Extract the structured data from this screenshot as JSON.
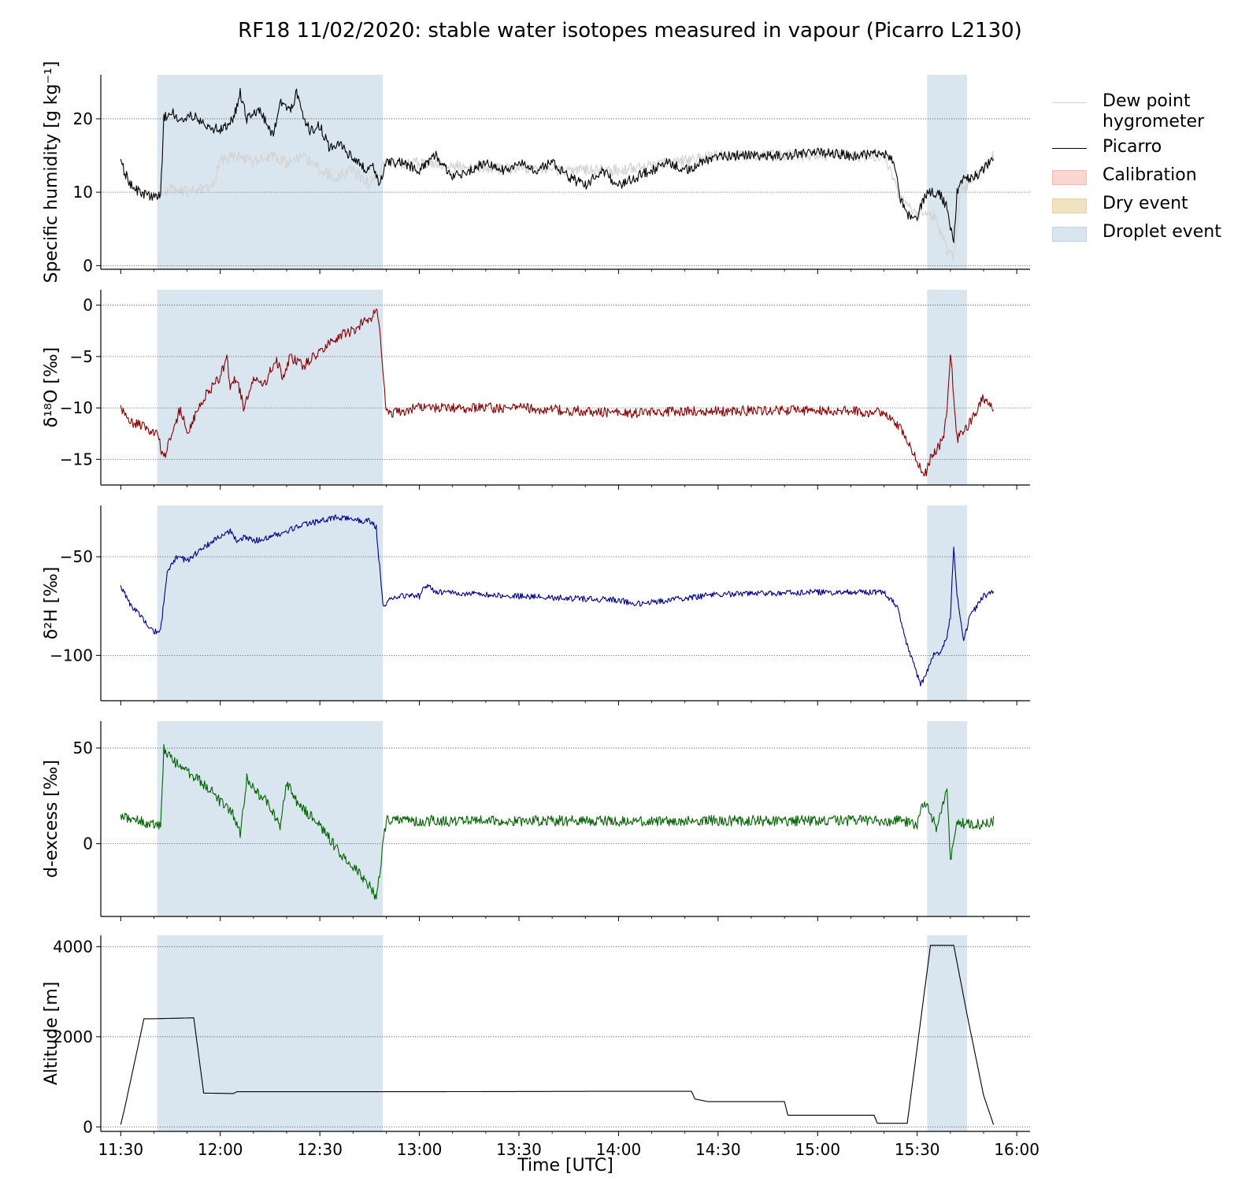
{
  "title": "RF18 11/02/2020: stable water isotopes measured in vapour (Picarro L2130)",
  "xlabel": "Time [UTC]",
  "legend": [
    {
      "label": "Dew point\nhygrometer",
      "kind": "line",
      "color": "#d3d3d3"
    },
    {
      "label": "Picarro",
      "kind": "line",
      "color": "#000000"
    },
    {
      "label": "Calibration",
      "kind": "patch",
      "color": "#fbd5d0"
    },
    {
      "label": "Dry event",
      "kind": "patch",
      "color": "#f2e3c0"
    },
    {
      "label": "Droplet event",
      "kind": "patch",
      "color": "#d9e5ef"
    }
  ],
  "chart_data": [
    {
      "type": "line",
      "ylabel": "Specific humidity [g kg⁻¹]",
      "ylim": [
        -0.5,
        26
      ],
      "yticks": [
        0,
        10,
        20
      ],
      "grid": "y-dotted",
      "shaded_events": [
        {
          "name": "Droplet event",
          "start": "11:41",
          "end": "12:49"
        },
        {
          "name": "Droplet event",
          "start": "15:33",
          "end": "15:45"
        }
      ],
      "series": [
        {
          "name": "Picarro",
          "color": "#000000",
          "x": [
            "11:30",
            "11:33",
            "11:36",
            "11:40",
            "11:42",
            "11:43",
            "11:45",
            "11:48",
            "11:52",
            "11:56",
            "12:00",
            "12:04",
            "12:06",
            "12:08",
            "12:12",
            "12:14",
            "12:16",
            "12:18",
            "12:21",
            "12:23",
            "12:25",
            "12:27",
            "12:30",
            "12:33",
            "12:36",
            "12:40",
            "12:44",
            "12:46",
            "12:48",
            "12:50",
            "12:55",
            "13:00",
            "13:05",
            "13:10",
            "13:15",
            "13:20",
            "13:25",
            "13:30",
            "13:35",
            "13:40",
            "13:45",
            "13:50",
            "13:55",
            "14:00",
            "14:05",
            "14:10",
            "14:15",
            "14:20",
            "14:25",
            "14:30",
            "14:40",
            "14:50",
            "15:00",
            "15:10",
            "15:20",
            "15:23",
            "15:25",
            "15:27",
            "15:30",
            "15:31",
            "15:33",
            "15:35",
            "15:37",
            "15:39",
            "15:40",
            "15:41",
            "15:42",
            "15:44",
            "15:47",
            "15:50",
            "15:53"
          ],
          "y": [
            14,
            11,
            9.8,
            9.2,
            9.5,
            20,
            21,
            20,
            20.5,
            19,
            18.5,
            20,
            23.5,
            20,
            21.5,
            19,
            17.5,
            22.5,
            21,
            23.5,
            20,
            18.5,
            19,
            16,
            16.5,
            14.5,
            13,
            14,
            11,
            14,
            14,
            13,
            15,
            12,
            13,
            14,
            13,
            14,
            13,
            14,
            12,
            11,
            13,
            11,
            12,
            13,
            14,
            13,
            14,
            15,
            15,
            15,
            15.5,
            15,
            15.2,
            14.5,
            9,
            7,
            6,
            8,
            10,
            10,
            9.5,
            8,
            5,
            3.5,
            10,
            12,
            12,
            13,
            15
          ]
        },
        {
          "name": "Dew point hygrometer",
          "color": "#d3d3d3",
          "x": [
            "11:41",
            "11:45",
            "11:50",
            "11:55",
            "11:58",
            "12:00",
            "12:05",
            "12:10",
            "12:15",
            "12:20",
            "12:25",
            "12:30",
            "12:35",
            "12:40",
            "12:45",
            "12:50",
            "13:00",
            "13:30",
            "14:00",
            "14:30",
            "15:00",
            "15:20",
            "15:25",
            "15:30",
            "15:35",
            "15:39",
            "15:41",
            "15:43",
            "15:47",
            "15:53"
          ],
          "y": [
            9.5,
            10.5,
            10,
            10.5,
            11,
            14.5,
            15,
            14,
            15,
            14,
            15,
            13,
            12,
            13,
            11,
            14,
            14,
            13,
            13,
            15,
            15,
            15,
            9,
            7,
            7,
            2,
            1,
            10,
            12,
            15
          ]
        }
      ]
    },
    {
      "type": "line",
      "ylabel": "δ¹⁸O [‰]",
      "ylim": [
        -17.5,
        1.5
      ],
      "yticks": [
        -15,
        -10,
        -5,
        0
      ],
      "grid": "y-dotted",
      "series": [
        {
          "name": "",
          "color": "#8b0000",
          "x": [
            "11:30",
            "11:34",
            "11:38",
            "11:41",
            "11:43",
            "11:45",
            "11:48",
            "11:50",
            "11:52",
            "11:55",
            "12:00",
            "12:02",
            "12:03",
            "12:05",
            "12:07",
            "12:10",
            "12:13",
            "12:15",
            "12:17",
            "12:19",
            "12:21",
            "12:23",
            "12:25",
            "12:28",
            "12:32",
            "12:36",
            "12:40",
            "12:42",
            "12:44",
            "12:46",
            "12:47",
            "12:48",
            "12:50",
            "13:00",
            "13:30",
            "14:00",
            "14:30",
            "15:00",
            "15:20",
            "15:25",
            "15:29",
            "15:31",
            "15:32",
            "15:34",
            "15:36",
            "15:38",
            "15:39",
            "15:40",
            "15:42",
            "15:45",
            "15:50",
            "15:53"
          ],
          "y": [
            -10,
            -11.5,
            -12,
            -12.5,
            -15,
            -13,
            -10,
            -12.5,
            -11,
            -9,
            -7,
            -5,
            -8,
            -7,
            -10,
            -7,
            -8,
            -6.5,
            -5.5,
            -7,
            -5,
            -5.5,
            -6,
            -5,
            -4,
            -3,
            -2.5,
            -2,
            -1.5,
            -1,
            0,
            -2,
            -10.5,
            -10,
            -10,
            -10.5,
            -10.3,
            -10.2,
            -10.5,
            -12,
            -14.5,
            -16,
            -16.8,
            -15,
            -14,
            -13,
            -10,
            -4.5,
            -13,
            -12,
            -9,
            -10
          ]
        }
      ]
    },
    {
      "type": "line",
      "ylabel": "δ²H [‰]",
      "ylim": [
        -123,
        -24
      ],
      "yticks": [
        -100,
        -50
      ],
      "grid": "y-dotted",
      "series": [
        {
          "name": "",
          "color": "#00008b",
          "x": [
            "11:30",
            "11:33",
            "11:36",
            "11:40",
            "11:42",
            "11:44",
            "11:47",
            "11:50",
            "11:55",
            "12:00",
            "12:03",
            "12:05",
            "12:07",
            "12:10",
            "12:15",
            "12:20",
            "12:25",
            "12:30",
            "12:35",
            "12:40",
            "12:45",
            "12:47",
            "12:49",
            "12:52",
            "12:55",
            "13:00",
            "13:02",
            "13:05",
            "13:30",
            "14:00",
            "14:05",
            "14:30",
            "15:00",
            "15:20",
            "15:24",
            "15:27",
            "15:30",
            "15:31",
            "15:33",
            "15:35",
            "15:37",
            "15:39",
            "15:40",
            "15:41",
            "15:42",
            "15:44",
            "15:46",
            "15:50",
            "15:53"
          ],
          "y": [
            -65,
            -75,
            -80,
            -88,
            -88,
            -58,
            -50,
            -52,
            -45,
            -40,
            -37,
            -42,
            -40,
            -42,
            -40,
            -37,
            -34,
            -32,
            -30,
            -31,
            -32,
            -35,
            -75,
            -71,
            -70,
            -70,
            -64,
            -68,
            -70,
            -72,
            -74,
            -69,
            -68,
            -68,
            -75,
            -95,
            -110,
            -115,
            -108,
            -100,
            -98,
            -90,
            -80,
            -45,
            -70,
            -92,
            -80,
            -70,
            -68
          ]
        }
      ]
    },
    {
      "type": "line",
      "ylabel": "d-excess [‰]",
      "ylim": [
        -38,
        64
      ],
      "yticks": [
        0,
        50
      ],
      "grid": "y-dotted",
      "series": [
        {
          "name": "",
          "color": "#006400",
          "x": [
            "11:30",
            "11:35",
            "11:40",
            "11:42",
            "11:43",
            "11:45",
            "11:48",
            "11:52",
            "11:56",
            "12:00",
            "12:04",
            "12:06",
            "12:08",
            "12:10",
            "12:14",
            "12:16",
            "12:18",
            "12:20",
            "12:22",
            "12:24",
            "12:27",
            "12:32",
            "12:36",
            "12:40",
            "12:44",
            "12:46",
            "12:47",
            "12:48",
            "12:50",
            "13:00",
            "13:30",
            "14:00",
            "14:30",
            "15:00",
            "15:20",
            "15:25",
            "15:30",
            "15:32",
            "15:34",
            "15:36",
            "15:39",
            "15:40",
            "15:42",
            "15:45",
            "15:50",
            "15:53"
          ],
          "y": [
            15,
            12,
            10,
            10,
            50,
            45,
            40,
            35,
            30,
            22,
            15,
            5,
            35,
            28,
            22,
            16,
            10,
            32,
            25,
            20,
            15,
            5,
            -5,
            -12,
            -20,
            -25,
            -30,
            -15,
            12,
            12,
            12,
            12,
            12,
            12,
            12,
            12,
            10,
            22,
            15,
            8,
            30,
            -10,
            12,
            10,
            10,
            12
          ]
        }
      ]
    },
    {
      "type": "line",
      "ylabel": "Altitude [m]",
      "ylim": [
        -100,
        4250
      ],
      "yticks": [
        0,
        2000,
        4000
      ],
      "grid": "y-dotted",
      "series": [
        {
          "name": "",
          "color": "#000000",
          "x": [
            "11:30",
            "11:31",
            "11:37",
            "11:40",
            "11:52",
            "11:55",
            "12:04",
            "12:05",
            "12:30",
            "13:00",
            "14:00",
            "14:22",
            "14:23",
            "14:27",
            "14:50",
            "14:51",
            "15:17",
            "15:18",
            "15:26",
            "15:27",
            "15:34",
            "15:41",
            "15:45",
            "15:50",
            "15:53"
          ],
          "y": [
            50,
            350,
            2400,
            2400,
            2420,
            750,
            740,
            780,
            780,
            780,
            790,
            790,
            620,
            560,
            560,
            260,
            260,
            80,
            80,
            80,
            4030,
            4030,
            2500,
            700,
            50
          ]
        }
      ]
    }
  ],
  "xaxis": {
    "start": "11:24",
    "end": "16:04",
    "ticks": [
      "11:30",
      "12:00",
      "12:30",
      "13:00",
      "13:30",
      "14:00",
      "14:30",
      "15:00",
      "15:30",
      "16:00"
    ]
  }
}
